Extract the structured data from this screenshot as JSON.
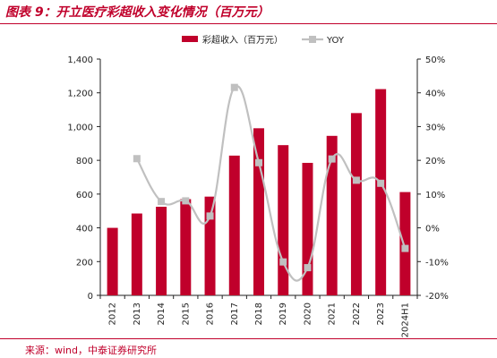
{
  "title": "图表 9：开立医疗彩超收入变化情况（百万元）",
  "source": "来源：wind，中泰证券研究所",
  "chart_data": {
    "type": "bar",
    "categories": [
      "2012",
      "2013",
      "2014",
      "2015",
      "2016",
      "2017",
      "2018",
      "2019",
      "2020",
      "2021",
      "2022",
      "2023",
      "2024H1"
    ],
    "series": [
      {
        "name": "彩超收入（百万元）",
        "type": "bar",
        "axis": "left",
        "color": "#c0002b",
        "values": [
          400,
          485,
          525,
          570,
          585,
          828,
          990,
          890,
          785,
          945,
          1080,
          1222,
          612
        ]
      },
      {
        "name": "YOY",
        "type": "line",
        "axis": "right",
        "color": "#c0c0c0",
        "values": [
          null,
          20.5,
          7.8,
          8.0,
          3.5,
          41.6,
          19.3,
          -10.1,
          -11.8,
          20.4,
          14.1,
          13.2,
          -6.1
        ]
      }
    ],
    "y_left": {
      "min": 0,
      "max": 1400,
      "step": 200,
      "tick_labels": [
        "0",
        "200",
        "400",
        "600",
        "800",
        "1,000",
        "1,200",
        "1,400"
      ]
    },
    "y_right": {
      "min": -20,
      "max": 50,
      "step": 10,
      "tick_labels": [
        "-20%",
        "-10%",
        "0%",
        "10%",
        "20%",
        "30%",
        "40%",
        "50%"
      ]
    },
    "legend": {
      "placement": "top"
    },
    "grid": false
  }
}
